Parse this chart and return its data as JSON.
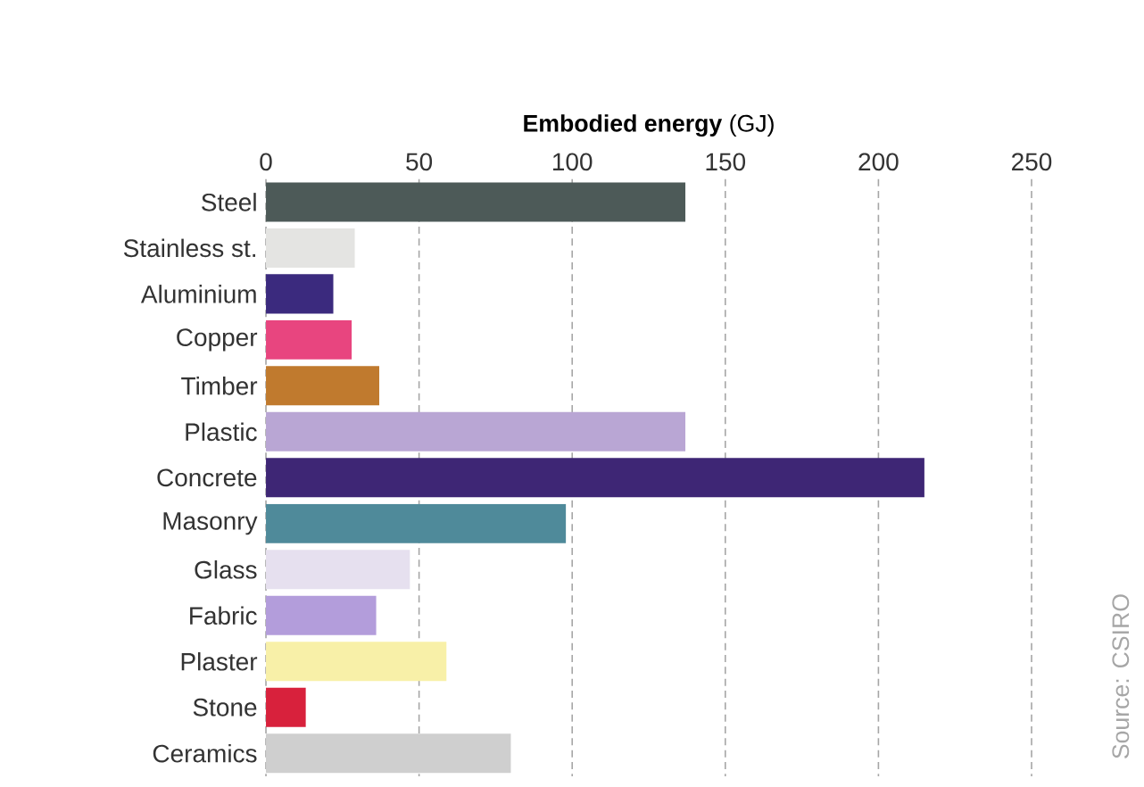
{
  "chart_data": {
    "type": "bar",
    "orientation": "horizontal",
    "xlabel": "**Embodied energy** (GJ)",
    "categories": [
      "Steel",
      "Stainless st.",
      "Aluminium",
      "Copper",
      "Timber",
      "Plastic",
      "Concrete",
      "Masonry",
      "Glass",
      "Fabric",
      "Plaster",
      "Stone",
      "Ceramics"
    ],
    "values": [
      137,
      29,
      22,
      28,
      37,
      137,
      215,
      98,
      47,
      36,
      59,
      13,
      80
    ],
    "colors": [
      "#4d5a58",
      "#e4e4e2",
      "#3b2a7e",
      "#e8457f",
      "#c07a2e",
      "#b9a6d4",
      "#3e2675",
      "#4f8a9a",
      "#e6e0ef",
      "#b39ddb",
      "#f8f0a8",
      "#d8213c",
      "#cfcfcf"
    ],
    "xlim": [
      0,
      250
    ],
    "xticks": [
      0,
      50,
      100,
      150,
      200,
      250
    ],
    "grid": "x",
    "annotations": [
      "Source: CSIRO"
    ]
  }
}
